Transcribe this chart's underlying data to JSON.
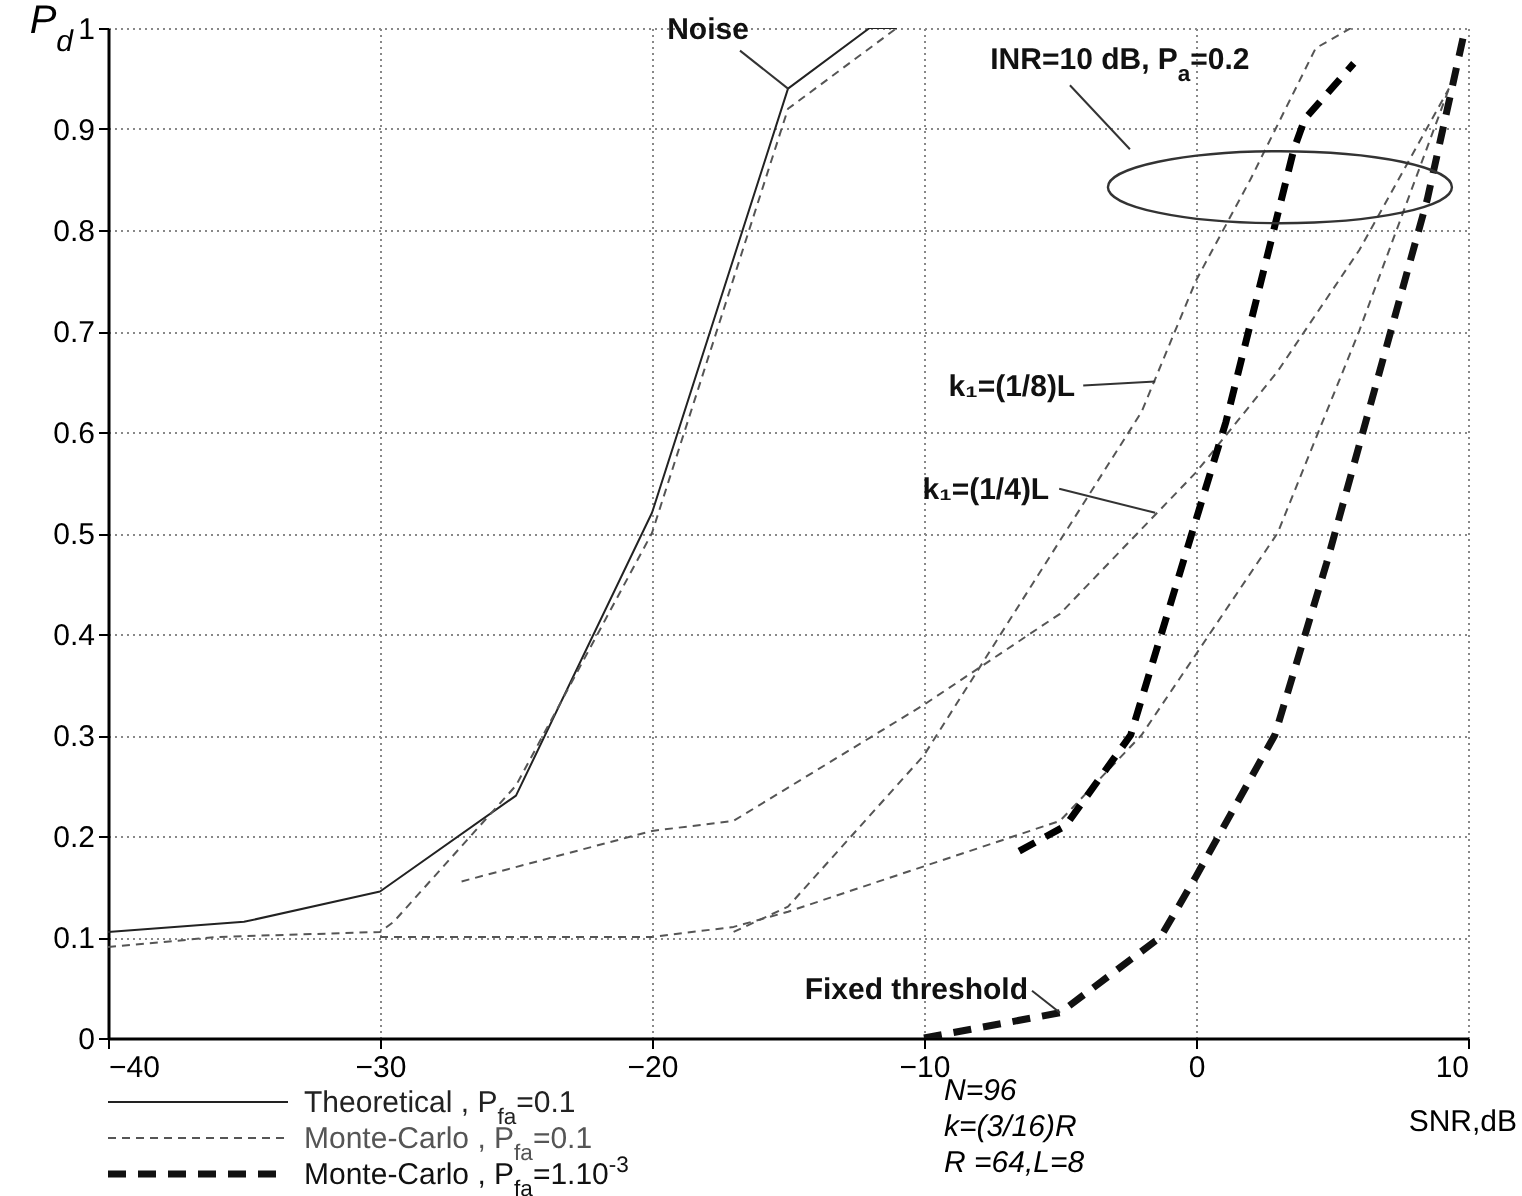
{
  "chart_data": {
    "type": "line",
    "xlabel": "SNR,dB",
    "ylabel": "P$_{d}$",
    "xlim": [
      -40,
      10
    ],
    "xticks": [
      -40,
      -30,
      -20,
      -10,
      0,
      10
    ],
    "ylim": [
      0,
      1
    ],
    "yticks": [
      0,
      0.1,
      0.2,
      0.3,
      0.4,
      0.5,
      0.6,
      0.7,
      0.8,
      0.9,
      1
    ],
    "grid": true,
    "legend": "bottom",
    "series": [
      {
        "name": "Theoretical , P$_{fa}$=0.1",
        "color": "#222222",
        "line_style": "solid",
        "x": [
          -40,
          -35,
          -30,
          -25,
          -20,
          -15,
          -12,
          -11
        ],
        "values": [
          0.105,
          0.115,
          0.145,
          0.24,
          0.52,
          0.94,
          1.0,
          1.0
        ]
      },
      {
        "name": "Monte-Carlo , P$_{fa}$=0.1",
        "color": "#555555",
        "line_style": "dotted",
        "x": [
          -40,
          -36,
          -30,
          -29.5,
          -25,
          -20,
          -15,
          -11
        ],
        "values": [
          0.09,
          0.1,
          0.105,
          0.115,
          0.25,
          0.5,
          0.92,
          1.0
        ]
      },
      {
        "name": "Monte-Carlo , P$_{fa}$=1.10$^{-3}$",
        "color": "#111111",
        "line_style": "dashed",
        "x": [
          -10,
          -5,
          -1.3,
          0,
          2.9,
          4.8,
          8.5,
          9.9
        ],
        "values": [
          0,
          0.025,
          0.1,
          0.16,
          0.3,
          0.47,
          0.83,
          1.0
        ]
      },
      {
        "color": "#555555",
        "line_style": "dotted",
        "x": [
          -27,
          -20,
          -17,
          -10,
          -5,
          0,
          3,
          6,
          9.3
        ],
        "values": [
          0.155,
          0.205,
          0.215,
          0.33,
          0.42,
          0.56,
          0.66,
          0.78,
          0.94
        ]
      },
      {
        "color": "#555555",
        "line_style": "dotted",
        "x": [
          -30,
          -20,
          -17,
          -15,
          -10,
          -5,
          -2,
          0,
          3,
          6,
          9.3
        ],
        "values": [
          0.1,
          0.1,
          0.11,
          0.125,
          0.17,
          0.215,
          0.3,
          0.38,
          0.5,
          0.7,
          0.94
        ]
      },
      {
        "color": "#555555",
        "line_style": "dotted",
        "x": [
          -17,
          -15,
          -10,
          -6,
          -2,
          0,
          2,
          4.4,
          5.7
        ],
        "values": [
          0.105,
          0.13,
          0.28,
          0.45,
          0.62,
          0.75,
          0.85,
          0.98,
          1.0
        ]
      },
      {
        "color": "#000000",
        "line_style": "dashed",
        "x": [
          -6.5,
          -4.8,
          -2.4,
          -0.6,
          1.1,
          3.6,
          4,
          5.8
        ],
        "values": [
          0.185,
          0.21,
          0.3,
          0.46,
          0.61,
          0.88,
          0.91,
          0.965
        ]
      }
    ],
    "annotations": [
      {
        "text": "Noise",
        "x": -15,
        "y": 0.94
      },
      {
        "text": "INR=10 dB, P$_{a}$=0.2",
        "x": 3.6,
        "y": 0.88
      },
      {
        "text": "k₁=(1/8)L",
        "x": -1.5,
        "y": 0.65
      },
      {
        "text": "k₁=(1/4)L",
        "x": -1.5,
        "y": 0.52
      },
      {
        "text": "Fixed threshold",
        "x": -5,
        "y": 0.025
      },
      "N=96",
      "k=(3/16)R",
      "R =64,L=8"
    ]
  }
}
